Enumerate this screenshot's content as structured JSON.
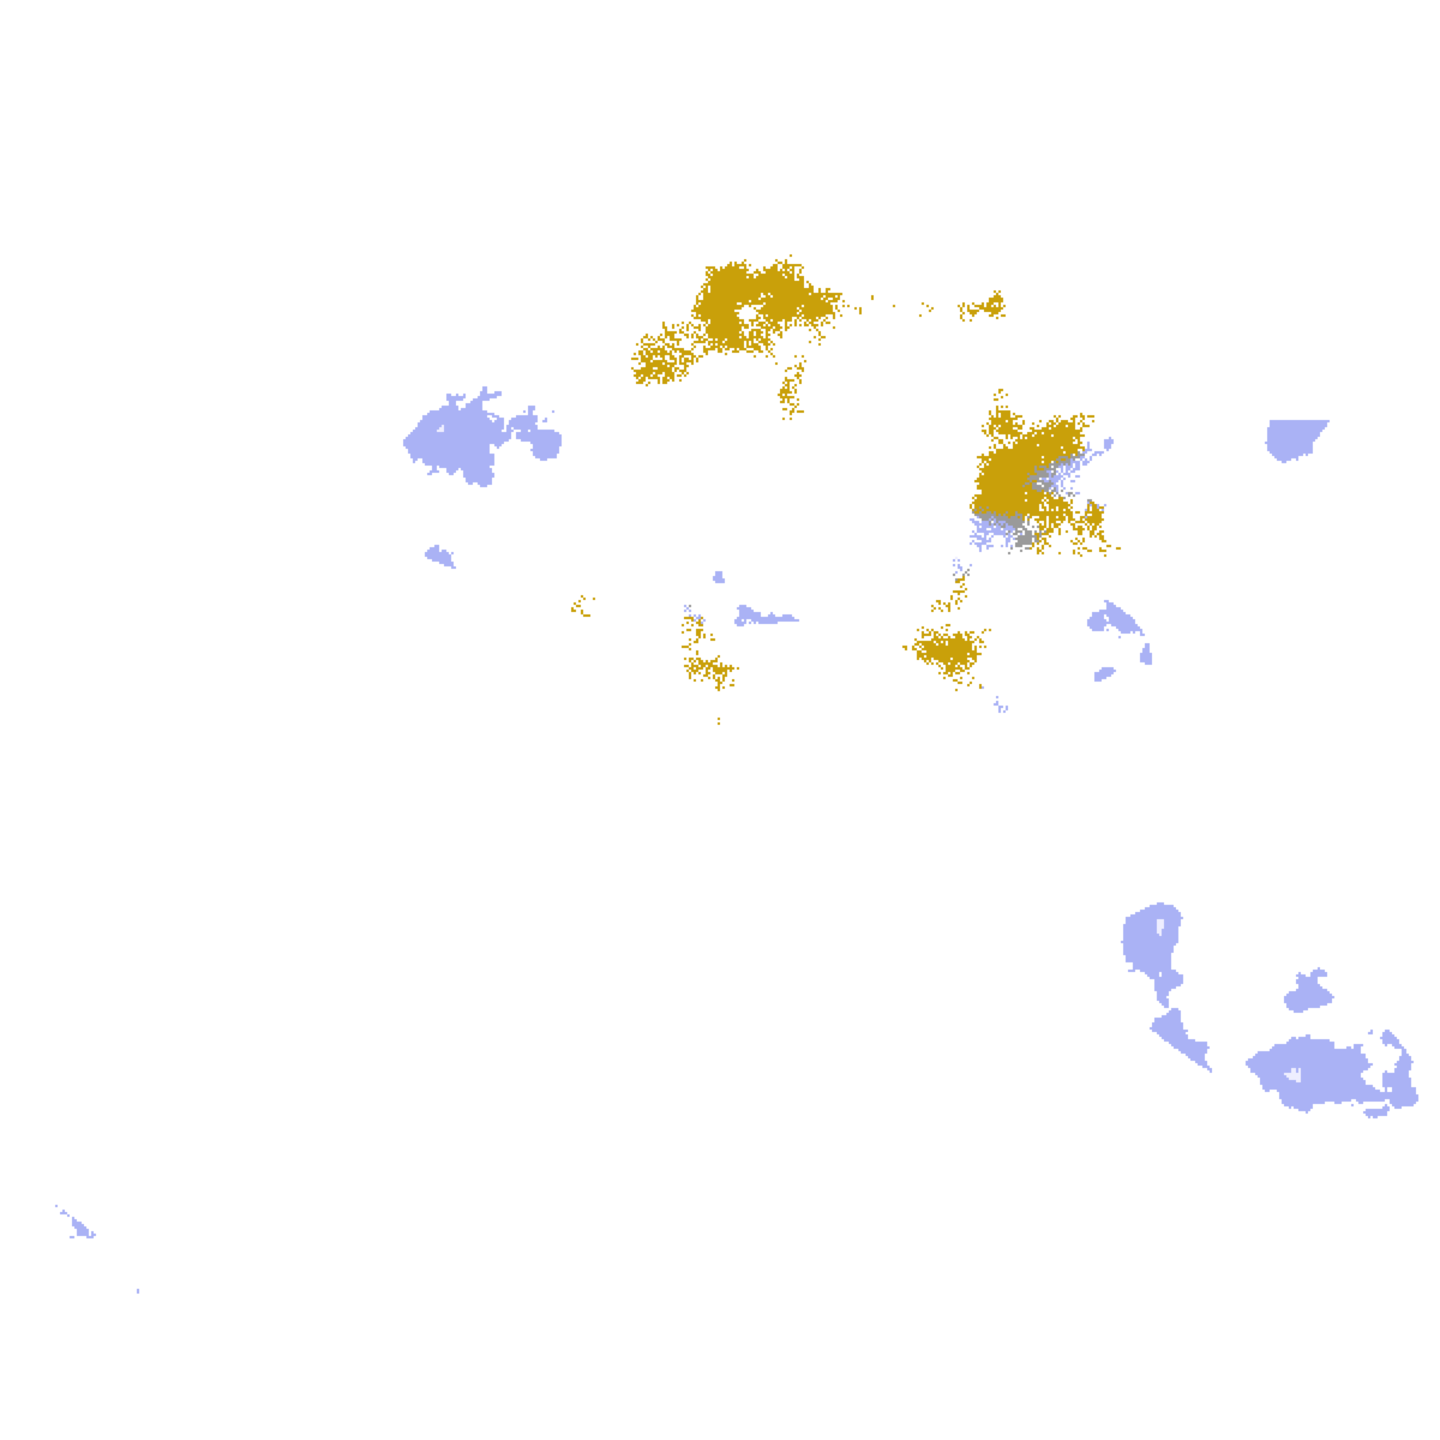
{
  "map": {
    "type": "classified-satellite-raster",
    "palette": {
      "clear": "#ffffff",
      "gold": "#c9a00a",
      "gold_dark": "#a88a10",
      "purple": "#7a35b8",
      "magenta": "#cc55e0",
      "lavender": "#eeeeff",
      "periwinkle": "#aab2f5",
      "gray": "#9a9a9a"
    }
  }
}
